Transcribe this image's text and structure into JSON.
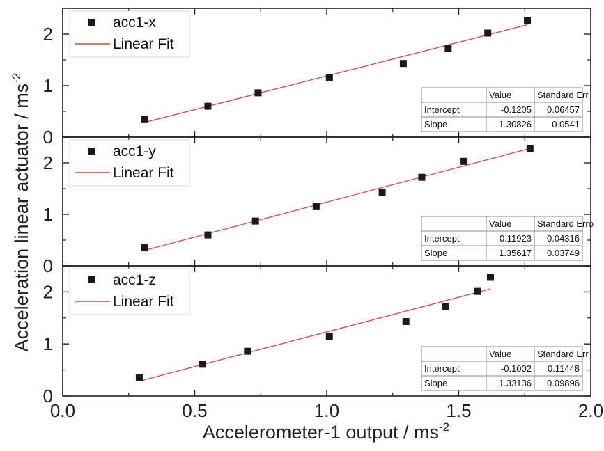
{
  "chart_data": [
    {
      "type": "scatter",
      "panel": "acc1-x",
      "series": [
        {
          "name": "acc1-x",
          "x": [
            0.31,
            0.55,
            0.74,
            1.01,
            1.29,
            1.46,
            1.61,
            1.76
          ],
          "y": [
            0.34,
            0.6,
            0.86,
            1.15,
            1.43,
            1.72,
            2.02,
            2.27
          ]
        }
      ],
      "fit": {
        "label": "Linear Fit",
        "x_range": [
          0.31,
          1.76
        ]
      },
      "fit_table": {
        "columns": [
          "",
          "Value",
          "Standard Err"
        ],
        "rows": [
          [
            "Intercept",
            "-0.1205",
            "0.06457"
          ],
          [
            "Slope",
            "1.30826",
            "0.0541"
          ]
        ],
        "intercept": -0.1205,
        "slope": 1.30826
      },
      "ylim": [
        0,
        2.5
      ],
      "yticks": [
        0,
        1,
        2
      ],
      "yticklabels": [
        "0",
        "1",
        "2"
      ]
    },
    {
      "type": "scatter",
      "panel": "acc1-y",
      "series": [
        {
          "name": "acc1-y",
          "x": [
            0.31,
            0.55,
            0.73,
            0.96,
            1.21,
            1.36,
            1.52,
            1.77
          ],
          "y": [
            0.35,
            0.6,
            0.87,
            1.15,
            1.42,
            1.72,
            2.03,
            2.28
          ]
        }
      ],
      "fit": {
        "label": "Linear Fit",
        "x_range": [
          0.31,
          1.76
        ]
      },
      "fit_table": {
        "columns": [
          "",
          "Value",
          "Standard Erro"
        ],
        "rows": [
          [
            "Intercept",
            "-0.11923",
            "0.04316"
          ],
          [
            "Slope",
            "1.35617",
            "0.03749"
          ]
        ],
        "intercept": -0.11923,
        "slope": 1.35617
      },
      "ylim": [
        0,
        2.5
      ],
      "yticks": [
        0,
        1,
        2
      ],
      "yticklabels": [
        "0",
        "1",
        "2"
      ]
    },
    {
      "type": "scatter",
      "panel": "acc1-z",
      "series": [
        {
          "name": "acc1-z",
          "x": [
            0.29,
            0.53,
            0.7,
            1.01,
            1.3,
            1.45,
            1.57,
            1.62
          ],
          "y": [
            0.35,
            0.61,
            0.86,
            1.15,
            1.43,
            1.72,
            2.01,
            2.28
          ]
        }
      ],
      "fit": {
        "label": "Linear Fit",
        "x_range": [
          0.29,
          1.62
        ]
      },
      "fit_table": {
        "columns": [
          "",
          "Value",
          "Standard Err"
        ],
        "rows": [
          [
            "Intercept",
            "-0.1002",
            "0.11448"
          ],
          [
            "Slope",
            "1.33136",
            "0.09896"
          ]
        ],
        "intercept": -0.1002,
        "slope": 1.33136
      },
      "ylim": [
        0,
        2.5
      ],
      "yticks": [
        0,
        1,
        2
      ],
      "yticklabels": [
        "0",
        "1",
        "2"
      ]
    }
  ],
  "xaxis": {
    "label": "Accelerometer-1 output / ms",
    "label_sup": "-2",
    "xlim": [
      0,
      2
    ],
    "ticks": [
      0,
      0.5,
      1,
      1.5,
      2
    ],
    "ticklabels": [
      "0.0",
      "0.5",
      "1.0",
      "1.5",
      "2.0"
    ]
  },
  "yaxis": {
    "label": "Acceleration linear actuator / ms",
    "label_sup": "-2"
  },
  "colors": {
    "marker": "#1a1a1a",
    "fit_line": "#e8413c",
    "frame": "#222222",
    "table_border": "#888888"
  },
  "legend_placement": "top-left",
  "fit_table_placement": "bottom-right",
  "grid": false
}
